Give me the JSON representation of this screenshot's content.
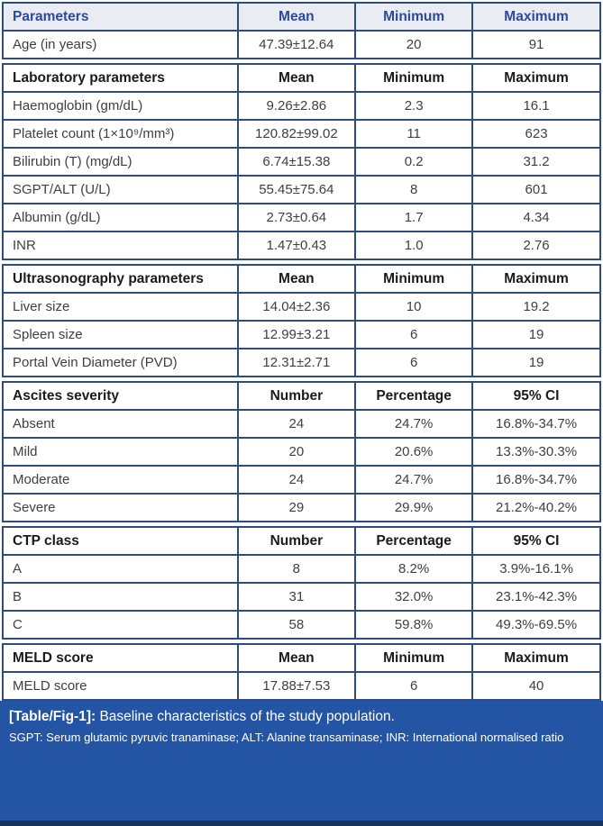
{
  "colors": {
    "table_border": "#2e4c7d",
    "top_header_bg": "#eaecf4",
    "top_header_text": "#2b4a9b",
    "body_text": "#3f3f3f",
    "footer_bg": "#2355a4",
    "footer_text": "#ffffff",
    "bottom_strip": "#18335c"
  },
  "chart_data": {
    "type": "table",
    "title": "[Table/Fig-1]: Baseline characteristics of the study population.",
    "column_count": 4,
    "sections": [
      {
        "id": "demographics",
        "header_style": "blue",
        "header": [
          "Parameters",
          "Mean",
          "Minimum",
          "Maximum"
        ],
        "rows": [
          [
            "Age (in years)",
            "47.39±12.64",
            "20",
            "91"
          ]
        ]
      },
      {
        "id": "laboratory",
        "header_style": "plain",
        "header": [
          "Laboratory parameters",
          "Mean",
          "Minimum",
          "Maximum"
        ],
        "rows": [
          [
            "Haemoglobin (gm/dL)",
            "9.26±2.86",
            "2.3",
            "16.1"
          ],
          [
            "Platelet count (1×10⁹/mm³)",
            "120.82±99.02",
            "11",
            "623"
          ],
          [
            "Bilirubin (T) (mg/dL)",
            "6.74±15.38",
            "0.2",
            "31.2"
          ],
          [
            "SGPT/ALT (U/L)",
            "55.45±75.64",
            "8",
            "601"
          ],
          [
            "Albumin (g/dL)",
            "2.73±0.64",
            "1.7",
            "4.34"
          ],
          [
            "INR",
            "1.47±0.43",
            "1.0",
            "2.76"
          ]
        ]
      },
      {
        "id": "ultrasonography",
        "header_style": "plain",
        "header": [
          "Ultrasonography parameters",
          "Mean",
          "Minimum",
          "Maximum"
        ],
        "rows": [
          [
            "Liver size",
            "14.04±2.36",
            "10",
            "19.2"
          ],
          [
            "Spleen size",
            "12.99±3.21",
            "6",
            "19"
          ],
          [
            "Portal Vein Diameter (PVD)",
            "12.31±2.71",
            "6",
            "19"
          ]
        ]
      },
      {
        "id": "ascites-severity",
        "header_style": "plain",
        "header": [
          "Ascites severity",
          "Number",
          "Percentage",
          "95% CI"
        ],
        "rows": [
          [
            "Absent",
            "24",
            "24.7%",
            "16.8%-34.7%"
          ],
          [
            "Mild",
            "20",
            "20.6%",
            "13.3%-30.3%"
          ],
          [
            "Moderate",
            "24",
            "24.7%",
            "16.8%-34.7%"
          ],
          [
            "Severe",
            "29",
            "29.9%",
            "21.2%-40.2%"
          ]
        ]
      },
      {
        "id": "ctp-class",
        "header_style": "plain",
        "header": [
          "CTP class",
          "Number",
          "Percentage",
          "95% CI"
        ],
        "rows": [
          [
            "A",
            "8",
            "8.2%",
            "3.9%-16.1%"
          ],
          [
            "B",
            "31",
            "32.0%",
            "23.1%-42.3%"
          ],
          [
            "C",
            "58",
            "59.8%",
            "49.3%-69.5%"
          ]
        ]
      },
      {
        "id": "meld-score",
        "header_style": "plain",
        "header": [
          "MELD score",
          "Mean",
          "Minimum",
          "Maximum"
        ],
        "rows": [
          [
            "MELD score",
            "17.88±7.53",
            "6",
            "40"
          ]
        ]
      }
    ],
    "column_widths_percent": [
      39.3,
      19.7,
      19.6,
      21.4
    ]
  },
  "footer": {
    "caption_label": "[Table/Fig-1]:",
    "caption_text": "Baseline characteristics of the study population.",
    "abbreviations": "SGPT: Serum glutamic pyruvic tranaminase; ALT: Alanine transaminase; INR: International normalised ratio"
  }
}
